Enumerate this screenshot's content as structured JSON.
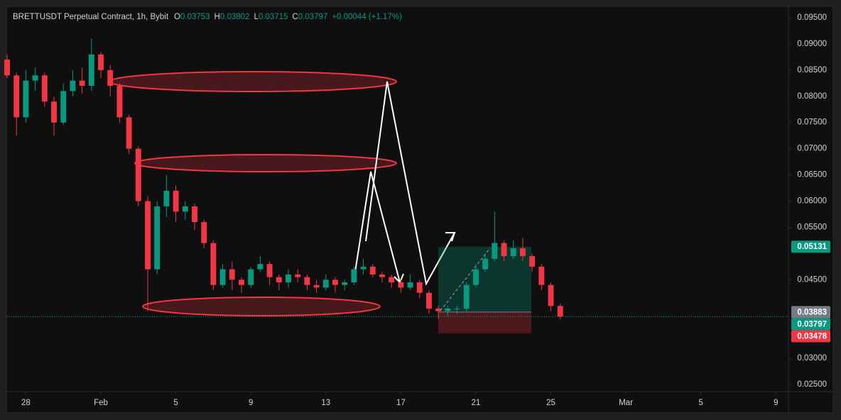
{
  "chart_data": {
    "type": "candlestick",
    "legend": {
      "symbol": "BRETTUSDT Perpetual Contract, 1h, Bybit",
      "ohlc": [
        {
          "label": "O",
          "value": 0.03753
        },
        {
          "label": "H",
          "value": 0.03802
        },
        {
          "label": "L",
          "value": 0.03715
        },
        {
          "label": "C",
          "value": 0.03797
        }
      ],
      "change": "+0.00044 (+1.17%)"
    },
    "up_color": "#089981",
    "down_color": "#f23645",
    "x": [
      -5,
      -4.5,
      -4,
      -3.5,
      -3,
      -2.5,
      -2,
      -1.5,
      -1,
      -0.5,
      0,
      0.5,
      1,
      1.5,
      2,
      2.5,
      3,
      3.5,
      4,
      4.5,
      5,
      5.5,
      6,
      6.5,
      7,
      7.5,
      8,
      8.5,
      9,
      9.5,
      10,
      10.5,
      11,
      11.5,
      12,
      12.5,
      13,
      13.5,
      14,
      14.5,
      15,
      15.5,
      16,
      16.5,
      17,
      17.5,
      18,
      18.5,
      19,
      19.5,
      20,
      20.5,
      21,
      21.5,
      22,
      22.5,
      23,
      23.5,
      24,
      24.5
    ],
    "open": [
      0.087,
      0.084,
      0.076,
      0.083,
      0.084,
      0.079,
      0.075,
      0.081,
      0.083,
      0.082,
      0.088,
      0.085,
      0.082,
      0.076,
      0.07,
      0.06,
      0.047,
      0.059,
      0.062,
      0.058,
      0.059,
      0.056,
      0.052,
      0.044,
      0.047,
      0.045,
      0.044,
      0.047,
      0.048,
      0.0455,
      0.0445,
      0.046,
      0.0455,
      0.044,
      0.0435,
      0.045,
      0.044,
      0.0445,
      0.047,
      0.0475,
      0.046,
      0.0455,
      0.0445,
      0.0435,
      0.0445,
      0.0425,
      0.0395,
      0.039,
      0.0395,
      0.0395,
      0.044,
      0.047,
      0.049,
      0.052,
      0.0495,
      0.051,
      0.0495,
      0.0475,
      0.044,
      0.04
    ],
    "high": [
      0.088,
      0.0845,
      0.085,
      0.0855,
      0.0845,
      0.08,
      0.0825,
      0.085,
      0.0855,
      0.091,
      0.0885,
      0.086,
      0.0825,
      0.0765,
      0.0705,
      0.061,
      0.06,
      0.065,
      0.063,
      0.06,
      0.0595,
      0.0565,
      0.0525,
      0.048,
      0.0485,
      0.0455,
      0.0475,
      0.0495,
      0.0485,
      0.046,
      0.047,
      0.047,
      0.046,
      0.045,
      0.046,
      0.0455,
      0.045,
      0.0475,
      0.049,
      0.048,
      0.0465,
      0.046,
      0.045,
      0.046,
      0.045,
      0.043,
      0.04,
      0.04,
      0.04,
      0.0445,
      0.048,
      0.05,
      0.058,
      0.0525,
      0.0525,
      0.053,
      0.05,
      0.048,
      0.0445,
      0.0405
    ],
    "low": [
      0.0835,
      0.0725,
      0.075,
      0.081,
      0.078,
      0.0725,
      0.0745,
      0.08,
      0.0805,
      0.081,
      0.0835,
      0.08,
      0.075,
      0.069,
      0.059,
      0.039,
      0.046,
      0.057,
      0.056,
      0.0565,
      0.0545,
      0.051,
      0.043,
      0.0435,
      0.043,
      0.0425,
      0.0435,
      0.0465,
      0.044,
      0.043,
      0.0435,
      0.0445,
      0.043,
      0.0425,
      0.043,
      0.0425,
      0.043,
      0.044,
      0.046,
      0.0455,
      0.0445,
      0.0435,
      0.0425,
      0.043,
      0.0415,
      0.0385,
      0.0375,
      0.038,
      0.0385,
      0.039,
      0.0435,
      0.0465,
      0.0485,
      0.0485,
      0.049,
      0.0485,
      0.0465,
      0.043,
      0.039,
      0.0375
    ],
    "close": [
      0.084,
      0.076,
      0.083,
      0.084,
      0.079,
      0.075,
      0.081,
      0.083,
      0.082,
      0.088,
      0.085,
      0.082,
      0.076,
      0.07,
      0.06,
      0.047,
      0.059,
      0.062,
      0.058,
      0.059,
      0.056,
      0.052,
      0.044,
      0.047,
      0.045,
      0.044,
      0.047,
      0.048,
      0.0455,
      0.0445,
      0.046,
      0.0455,
      0.044,
      0.0435,
      0.045,
      0.044,
      0.0445,
      0.047,
      0.0475,
      0.046,
      0.0455,
      0.0445,
      0.0435,
      0.0445,
      0.0425,
      0.0395,
      0.039,
      0.0395,
      0.0395,
      0.044,
      0.047,
      0.049,
      0.052,
      0.0495,
      0.051,
      0.0495,
      0.0475,
      0.044,
      0.04,
      0.03797
    ],
    "xlim": [
      -5,
      36.67
    ],
    "ylim": [
      0.02365,
      0.09703
    ],
    "xticks": [
      {
        "value": -4,
        "label": "28"
      },
      {
        "value": 0,
        "label": "Feb"
      },
      {
        "value": 4,
        "label": "5"
      },
      {
        "value": 8,
        "label": "9"
      },
      {
        "value": 12,
        "label": "13"
      },
      {
        "value": 16,
        "label": "17"
      },
      {
        "value": 20,
        "label": "21"
      },
      {
        "value": 24,
        "label": "25"
      },
      {
        "value": 28,
        "label": "Mar"
      },
      {
        "value": 32,
        "label": "5"
      },
      {
        "value": 36,
        "label": "9"
      }
    ],
    "yticks": [
      {
        "value": 0.095,
        "label": "0.09500"
      },
      {
        "value": 0.09,
        "label": "0.09000"
      },
      {
        "value": 0.085,
        "label": "0.08500"
      },
      {
        "value": 0.08,
        "label": "0.08000"
      },
      {
        "value": 0.075,
        "label": "0.07500"
      },
      {
        "value": 0.07,
        "label": "0.07000"
      },
      {
        "value": 0.065,
        "label": "0.06500"
      },
      {
        "value": 0.06,
        "label": "0.06000"
      },
      {
        "value": 0.055,
        "label": "0.05500"
      },
      {
        "value": 0.045,
        "label": "0.04500"
      },
      {
        "value": 0.03,
        "label": "0.03000"
      },
      {
        "value": 0.025,
        "label": "0.02500"
      }
    ],
    "grid": false,
    "price_labels": [
      {
        "value": 0.05131,
        "color": "#089981"
      },
      {
        "value": 0.03883,
        "color": "#787b86"
      },
      {
        "value": 0.03797,
        "color": "#089981"
      },
      {
        "value": 0.03478,
        "color": "#f23645"
      }
    ]
  }
}
